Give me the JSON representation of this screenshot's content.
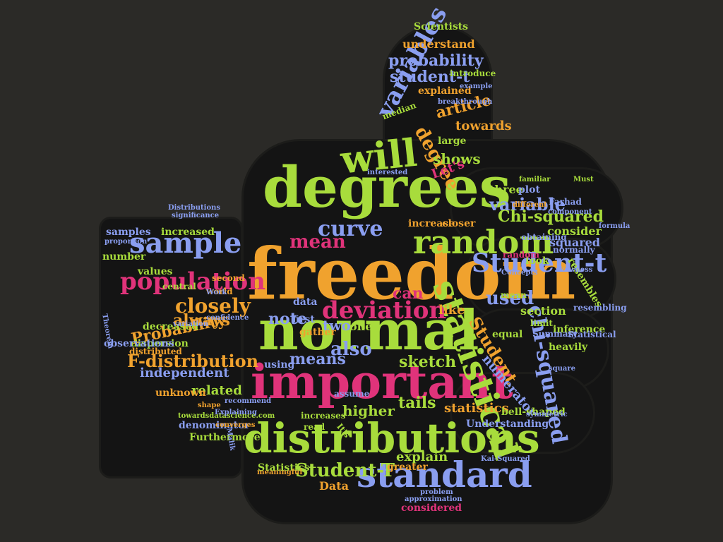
{
  "colors": {
    "background": "#2b2a27",
    "shape": "#141414",
    "palette": {
      "g": "#a8dc3c",
      "o": "#f0a22e",
      "b": "#8a9ef0",
      "p": "#e0337a"
    }
  },
  "words": [
    {
      "t": "freedom",
      "c": "o"
    },
    {
      "t": "degrees",
      "c": "g"
    },
    {
      "t": "normal",
      "c": "g"
    },
    {
      "t": "important",
      "c": "p"
    },
    {
      "t": "distributions",
      "c": "g"
    },
    {
      "t": "standard",
      "c": "b"
    },
    {
      "t": "will",
      "c": "g"
    },
    {
      "t": "random",
      "c": "g"
    },
    {
      "t": "statistical",
      "c": "g"
    },
    {
      "t": "Student-t",
      "c": "b"
    },
    {
      "t": "chi-squared",
      "c": "b"
    },
    {
      "t": "sample",
      "c": "b"
    },
    {
      "t": "population",
      "c": "p"
    },
    {
      "t": "deviation",
      "c": "p"
    },
    {
      "t": "mean",
      "c": "p"
    },
    {
      "t": "curve",
      "c": "b"
    },
    {
      "t": "variables",
      "c": "b"
    },
    {
      "t": "degree",
      "c": "o"
    },
    {
      "t": "Probability",
      "c": "o"
    },
    {
      "t": "F-distribution",
      "c": "o"
    },
    {
      "t": "closely",
      "c": "o"
    },
    {
      "t": "always",
      "c": "o"
    },
    {
      "t": "also",
      "c": "b"
    },
    {
      "t": "Student-T",
      "c": "g"
    },
    {
      "t": "Student",
      "c": "o"
    },
    {
      "t": "variable",
      "c": "b"
    },
    {
      "t": "Chi-squared",
      "c": "g"
    },
    {
      "t": "probability",
      "c": "b"
    },
    {
      "t": "student-t",
      "c": "b"
    },
    {
      "t": "article",
      "c": "o"
    },
    {
      "t": "used",
      "c": "b"
    },
    {
      "t": "can",
      "c": "p"
    },
    {
      "t": "sketch",
      "c": "g"
    },
    {
      "t": "means",
      "c": "b"
    },
    {
      "t": "note",
      "c": "b"
    },
    {
      "t": "two",
      "c": "b"
    },
    {
      "t": "one",
      "c": "g"
    },
    {
      "t": "tails",
      "c": "g"
    },
    {
      "t": "higher",
      "c": "g"
    },
    {
      "t": "explain",
      "c": "g"
    },
    {
      "t": "shows",
      "c": "g"
    },
    {
      "t": "towards",
      "c": "o"
    },
    {
      "t": "understand",
      "c": "o"
    },
    {
      "t": "increased",
      "c": "g"
    },
    {
      "t": "samples",
      "c": "b"
    },
    {
      "t": "number",
      "c": "g"
    },
    {
      "t": "values",
      "c": "g"
    },
    {
      "t": "independent",
      "c": "b"
    },
    {
      "t": "related",
      "c": "g"
    },
    {
      "t": "unknown",
      "c": "o"
    },
    {
      "t": "numerator",
      "c": "b"
    },
    {
      "t": "statistics",
      "c": "o"
    },
    {
      "t": "Data",
      "c": "o"
    },
    {
      "t": "Let's",
      "c": "p"
    },
    {
      "t": "three",
      "c": "g"
    },
    {
      "t": "consider",
      "c": "g"
    },
    {
      "t": "increase",
      "c": "o"
    },
    {
      "t": "closer",
      "c": "o"
    },
    {
      "t": "squared",
      "c": "b"
    },
    {
      "t": "resembles",
      "c": "g"
    },
    {
      "t": "inference",
      "c": "g"
    },
    {
      "t": "heavily",
      "c": "g"
    },
    {
      "t": "bell-shaped",
      "c": "g"
    },
    {
      "t": "Understanding",
      "c": "b"
    },
    {
      "t": "greater",
      "c": "o"
    },
    {
      "t": "Statistics",
      "c": "g"
    },
    {
      "t": "considered",
      "c": "p"
    },
    {
      "t": "Furthermore",
      "c": "g"
    },
    {
      "t": "denominator",
      "c": "b"
    },
    {
      "t": "decreased",
      "c": "g"
    },
    {
      "t": "dispersion",
      "c": "g"
    },
    {
      "t": "observations",
      "c": "b"
    },
    {
      "t": "Scientists",
      "c": "g"
    },
    {
      "t": "large",
      "c": "g"
    },
    {
      "t": "median",
      "c": "g"
    },
    {
      "t": "section",
      "c": "g"
    },
    {
      "t": "limit",
      "c": "g"
    },
    {
      "t": "plot",
      "c": "b"
    },
    {
      "t": "Farhad",
      "c": "b"
    },
    {
      "t": "normally",
      "c": "b"
    },
    {
      "t": "like",
      "c": "o"
    },
    {
      "t": "equal",
      "c": "g"
    },
    {
      "t": "first",
      "c": "b"
    },
    {
      "t": "gather",
      "c": "o"
    },
    {
      "t": "data",
      "c": "b"
    },
    {
      "t": "distributed",
      "c": "o"
    },
    {
      "t": "central",
      "c": "g"
    },
    {
      "t": "world",
      "c": "o"
    },
    {
      "t": "second",
      "c": "o"
    },
    {
      "t": "using",
      "c": "b"
    },
    {
      "t": "increases",
      "c": "g"
    },
    {
      "t": "assume",
      "c": "b"
    },
    {
      "t": "read",
      "c": "g"
    },
    {
      "t": "explained",
      "c": "o"
    },
    {
      "t": "introduce",
      "c": "g"
    },
    {
      "t": "look",
      "c": "g"
    },
    {
      "t": "It's",
      "c": "g"
    },
    {
      "t": "Statistical",
      "c": "b"
    },
    {
      "t": "Summary",
      "c": "b"
    },
    {
      "t": "resembling",
      "c": "b"
    },
    {
      "t": "significance",
      "c": "b"
    },
    {
      "t": "Distributions",
      "c": "b"
    },
    {
      "t": "skewness",
      "c": "b"
    },
    {
      "t": "symmetric",
      "c": "b"
    },
    {
      "t": "approximation",
      "c": "b"
    },
    {
      "t": "problem",
      "c": "b"
    },
    {
      "t": "meaningful",
      "c": "o"
    },
    {
      "t": "towardsdatascience.com",
      "c": "g"
    },
    {
      "t": "Kai-Squared",
      "c": "b"
    },
    {
      "t": "Concepts",
      "c": "b"
    },
    {
      "t": "Explaining",
      "c": "b"
    },
    {
      "t": "breakthrough",
      "c": "b"
    },
    {
      "t": "example",
      "c": "b"
    },
    {
      "t": "Malik",
      "c": "b"
    },
    {
      "t": "converges",
      "c": "o"
    },
    {
      "t": "recommend",
      "c": "b"
    },
    {
      "t": "confidence",
      "c": "b"
    },
    {
      "t": "variation",
      "c": "b"
    },
    {
      "t": "Theorem",
      "c": "b"
    },
    {
      "t": "proportion",
      "c": "b"
    },
    {
      "t": "component",
      "c": "b"
    },
    {
      "t": "formula",
      "c": "b"
    },
    {
      "t": "interested",
      "c": "b"
    },
    {
      "t": "familiar",
      "c": "g"
    },
    {
      "t": "different",
      "c": "o"
    },
    {
      "t": "square",
      "c": "b"
    },
    {
      "t": "obtaining",
      "c": "b"
    },
    {
      "t": "random",
      "c": "p"
    },
    {
      "t": "mean",
      "c": "g"
    },
    {
      "t": "shape",
      "c": "o"
    },
    {
      "t": "Work",
      "c": "b"
    },
    {
      "t": "Must",
      "c": "g"
    },
    {
      "t": "peak",
      "c": "b"
    }
  ]
}
